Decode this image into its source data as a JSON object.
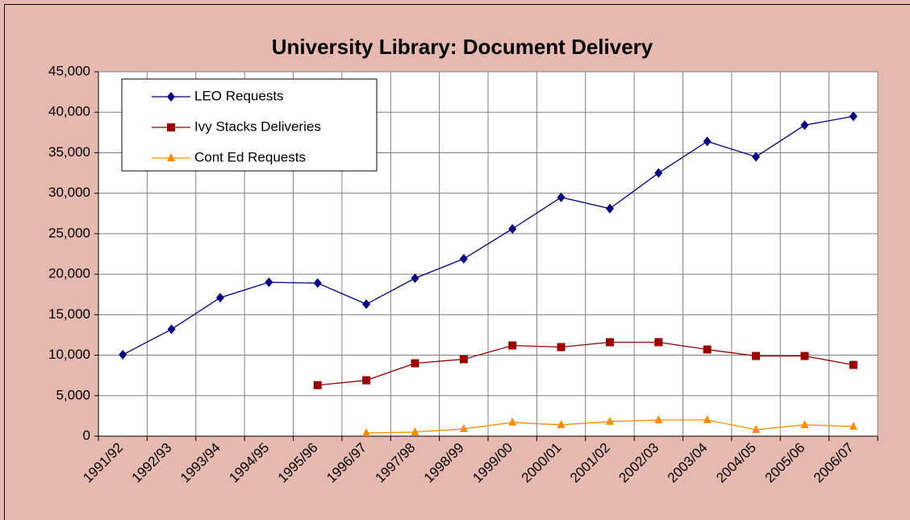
{
  "chart_data": {
    "type": "line",
    "title": "University Library:  Document Delivery",
    "categories": [
      "1991/92",
      "1992/93",
      "1993/94",
      "1994/95",
      "1995/96",
      "1996/97",
      "1997/98",
      "1998/99",
      "1999/00",
      "2000/01",
      "2001/02",
      "2002/03",
      "2003/04",
      "2004/05",
      "2005/06",
      "2006/07"
    ],
    "series": [
      {
        "name": "LEO Requests",
        "color": "#000080",
        "marker": "diamond",
        "values": [
          10050,
          13200,
          17100,
          19000,
          18900,
          16300,
          19500,
          21900,
          25600,
          29500,
          28100,
          32500,
          36400,
          34500,
          38400,
          39500
        ]
      },
      {
        "name": "Ivy Stacks Deliveries",
        "color": "#990000",
        "marker": "square",
        "values": [
          null,
          null,
          null,
          null,
          6300,
          6900,
          9000,
          9500,
          11200,
          11000,
          11600,
          11600,
          10700,
          9900,
          9900,
          8800
        ]
      },
      {
        "name": "Cont Ed Requests",
        "color": "#ff8c00",
        "marker": "triangle",
        "values": [
          null,
          null,
          null,
          null,
          null,
          400,
          500,
          900,
          1700,
          1400,
          1800,
          2000,
          2000,
          800,
          1400,
          1200
        ]
      }
    ],
    "ylim": [
      0,
      45000
    ],
    "yticks": [
      0,
      {
        "value": 5000,
        "label": "5,000"
      },
      {
        "value": 10000,
        "label": "10,000"
      },
      {
        "value": 15000,
        "label": "15,000"
      },
      {
        "value": 20000,
        "label": "20,000"
      },
      {
        "value": 25000,
        "label": "25,000"
      },
      {
        "value": 30000,
        "label": "30,000"
      },
      {
        "value": 35000,
        "label": "35,000"
      },
      {
        "value": 40000,
        "label": "40,000"
      },
      {
        "value": 45000,
        "label": "45,000"
      }
    ],
    "grid": true,
    "legend": "upper left"
  }
}
